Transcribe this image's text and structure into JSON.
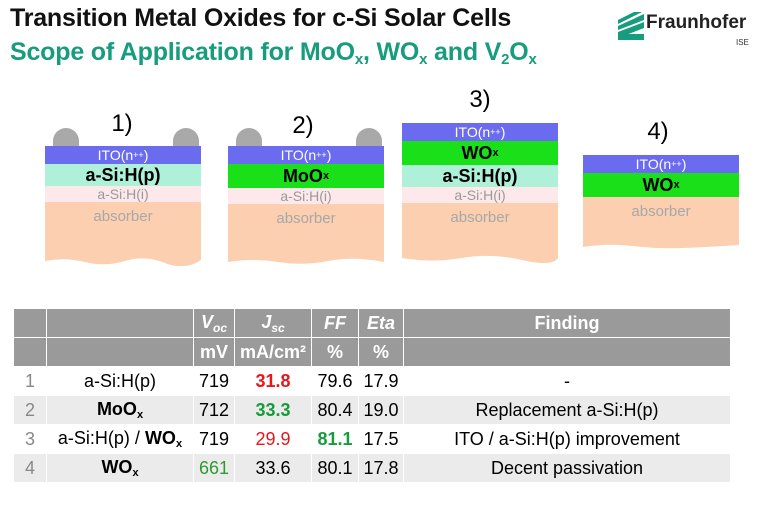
{
  "header": {
    "title": "Transition Metal Oxides for c-Si Solar Cells",
    "subtitle_prefix": "Scope of Application for MoO",
    "subtitle_sub1": "x",
    "subtitle_mid1": ", WO",
    "subtitle_sub2": "x",
    "subtitle_mid2": " and V",
    "subtitle_sub3": "2",
    "subtitle_mid3": "O",
    "subtitle_sub4": "x"
  },
  "logo": {
    "name": "Fraunhofer",
    "unit": "ISE"
  },
  "stacks": [
    {
      "num": "1)",
      "ito": "ITO(n",
      "ito_sup": "++",
      "ito_close": ")",
      "layer2": "a-Si:H(p)",
      "layer3": "a-Si:H(i)",
      "absorber": "absorber"
    },
    {
      "num": "2)",
      "ito": "ITO(n",
      "ito_sup": "++",
      "ito_close": ")",
      "layer2": "MoO",
      "layer2_sub": "x",
      "layer3": "a-Si:H(i)",
      "absorber": "absorber"
    },
    {
      "num": "3)",
      "ito": "ITO(n",
      "ito_sup": "++",
      "ito_close": ")",
      "layer2": "WO",
      "layer2_sub": "x",
      "layer3": "a-Si:H(p)",
      "layer4": "a-Si:H(i)",
      "absorber": "absorber"
    },
    {
      "num": "4)",
      "ito": "ITO(n",
      "ito_sup": "++",
      "ito_close": ")",
      "layer2": "WO",
      "layer2_sub": "x",
      "absorber": "absorber"
    }
  ],
  "table": {
    "headers": {
      "voc": "V",
      "voc_sub": "oc",
      "jsc": "J",
      "jsc_sub": "sc",
      "ff": "FF",
      "eta": "Eta",
      "finding": "Finding"
    },
    "units": {
      "voc": "mV",
      "jsc": "mA/cm²",
      "ff": "%",
      "eta": "%"
    },
    "rows": [
      {
        "num": "1",
        "layer": "a-Si:H(p)",
        "voc": "719",
        "jsc": "31.8",
        "ff": "79.6",
        "eta": "17.9",
        "finding": "-"
      },
      {
        "num": "2",
        "layer": "MoO",
        "layer_sub": "x",
        "voc": "712",
        "jsc": "33.3",
        "ff": "80.4",
        "eta": "19.0",
        "finding": "Replacement a-Si:H(p)"
      },
      {
        "num": "3",
        "layer_a": "a-Si:H(p) / ",
        "layer": "WO",
        "layer_sub": "x",
        "voc": "719",
        "jsc": "29.9",
        "ff": "81.1",
        "eta": "17.5",
        "finding": "ITO / a-Si:H(p) improvement"
      },
      {
        "num": "4",
        "layer": "WO",
        "layer_sub": "x",
        "voc": "661",
        "jsc": "33.6",
        "ff": "80.1",
        "eta": "17.8",
        "finding": "Decent passivation"
      }
    ]
  },
  "colors": {
    "ito": "#6b6bf0",
    "asip": "#aef0d8",
    "asii": "#fde8ec",
    "tmo": "#19e019",
    "absorber": "#fbcfb0",
    "brand_green": "#179c7d",
    "red": "#e4191e"
  }
}
